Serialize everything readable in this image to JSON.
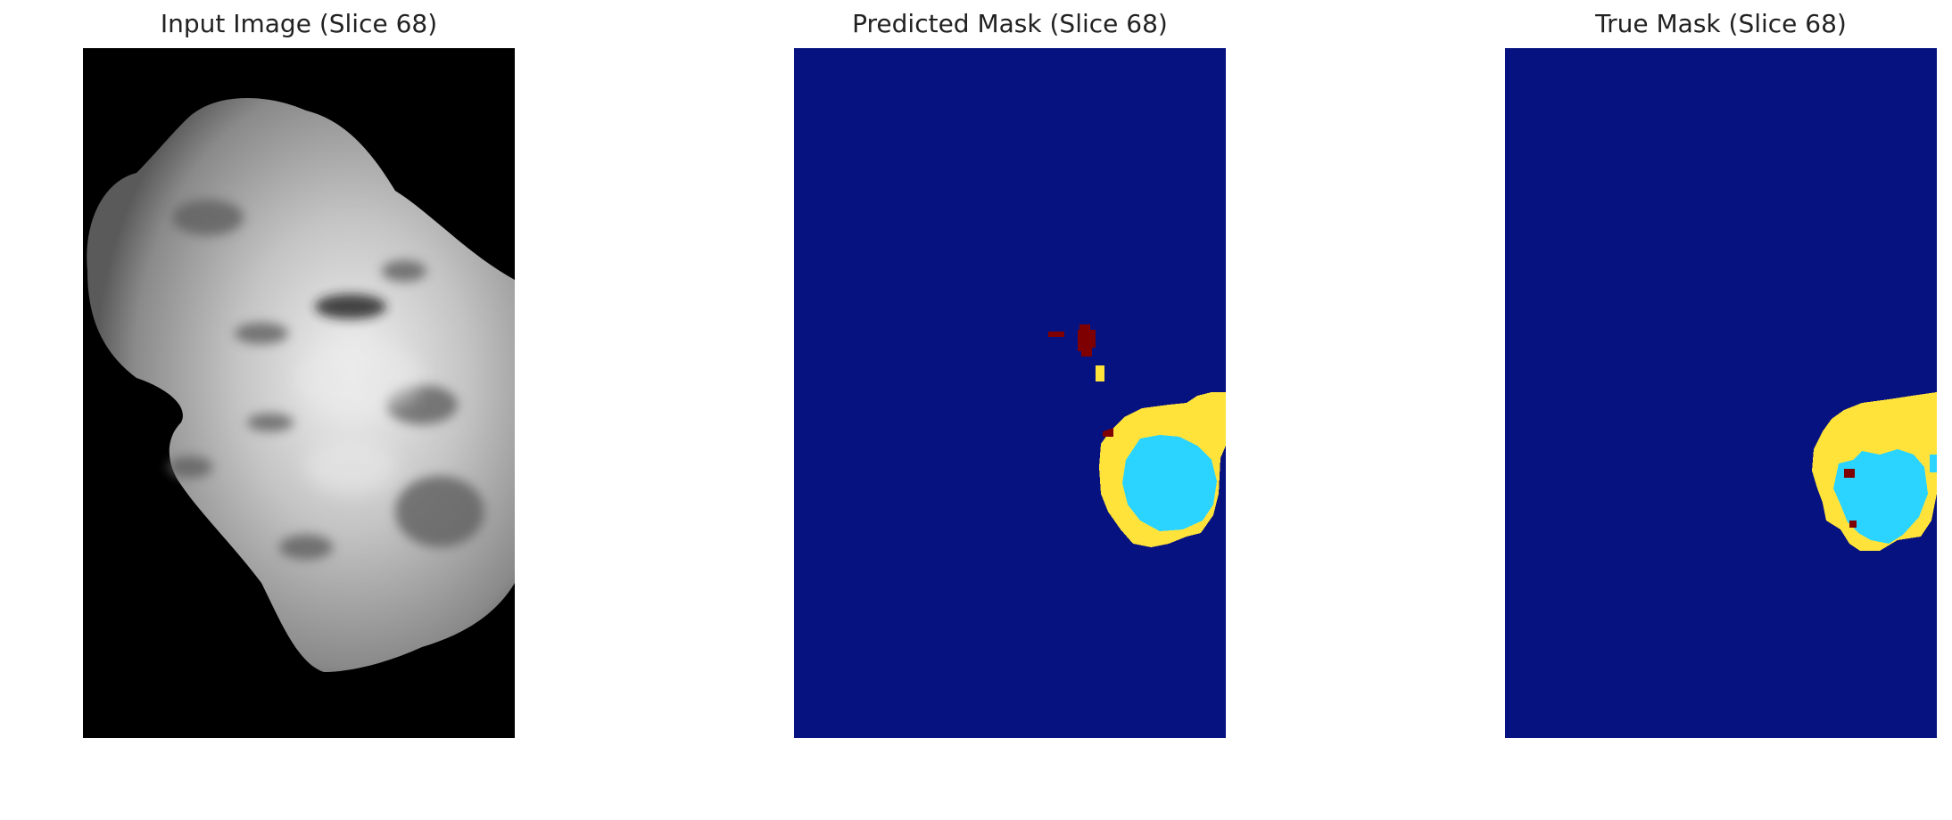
{
  "figure": {
    "panels": [
      {
        "title": "Input Image (Slice 68)",
        "kind": "mri-grayscale"
      },
      {
        "title": "Predicted Mask (Slice 68)",
        "kind": "segmentation-mask"
      },
      {
        "title": "True Mask (Slice 68)",
        "kind": "segmentation-mask"
      }
    ]
  },
  "colors": {
    "background_mask": "#061280",
    "class_yellow": "#ffe33b",
    "class_cyan": "#2ad4ff",
    "class_darkred": "#7f0000",
    "input_background": "#000000"
  }
}
